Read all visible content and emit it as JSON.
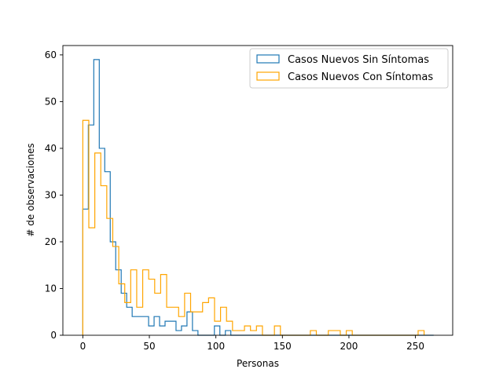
{
  "chart_data": {
    "type": "histogram",
    "xlabel": "Personas",
    "ylabel": "# de observaciones",
    "xlim": [
      -15.0,
      278.0
    ],
    "ylim": [
      0,
      62.0
    ],
    "xticks": [
      0,
      50,
      100,
      150,
      200,
      250
    ],
    "yticks": [
      0,
      10,
      20,
      30,
      40,
      50,
      60
    ],
    "legend_position": "upper right",
    "series": [
      {
        "name": "Casos Nuevos Sin Síntomas",
        "color": "#1f77b4",
        "bin_start": 0,
        "bin_width": 4.12,
        "counts": [
          27,
          45,
          59,
          40,
          35,
          20,
          14,
          9,
          6,
          4,
          4,
          4,
          2,
          4,
          2,
          3,
          3,
          1,
          2,
          5,
          1,
          0,
          0,
          0,
          2,
          0,
          1,
          0,
          0,
          0,
          0,
          0,
          0,
          0,
          0,
          0,
          0,
          0,
          0,
          0,
          0,
          0,
          0,
          0,
          0,
          0,
          0,
          0,
          0,
          0,
          0,
          0,
          0,
          0,
          0,
          0,
          0,
          0,
          0,
          0,
          0,
          0,
          0,
          0
        ]
      },
      {
        "name": "Casos Nuevos Con Síntomas",
        "color": "#ffa500",
        "bin_start": 0,
        "bin_width": 4.5,
        "counts": [
          46,
          23,
          39,
          32,
          25,
          19,
          11,
          7,
          14,
          6,
          14,
          12,
          9,
          13,
          6,
          6,
          4,
          9,
          5,
          5,
          7,
          8,
          3,
          6,
          3,
          1,
          1,
          2,
          1,
          2,
          0,
          0,
          2,
          0,
          0,
          0,
          0,
          0,
          1,
          0,
          0,
          1,
          1,
          0,
          1,
          0,
          0,
          0,
          0,
          0,
          0,
          0,
          0,
          0,
          0,
          0,
          1
        ]
      }
    ]
  }
}
